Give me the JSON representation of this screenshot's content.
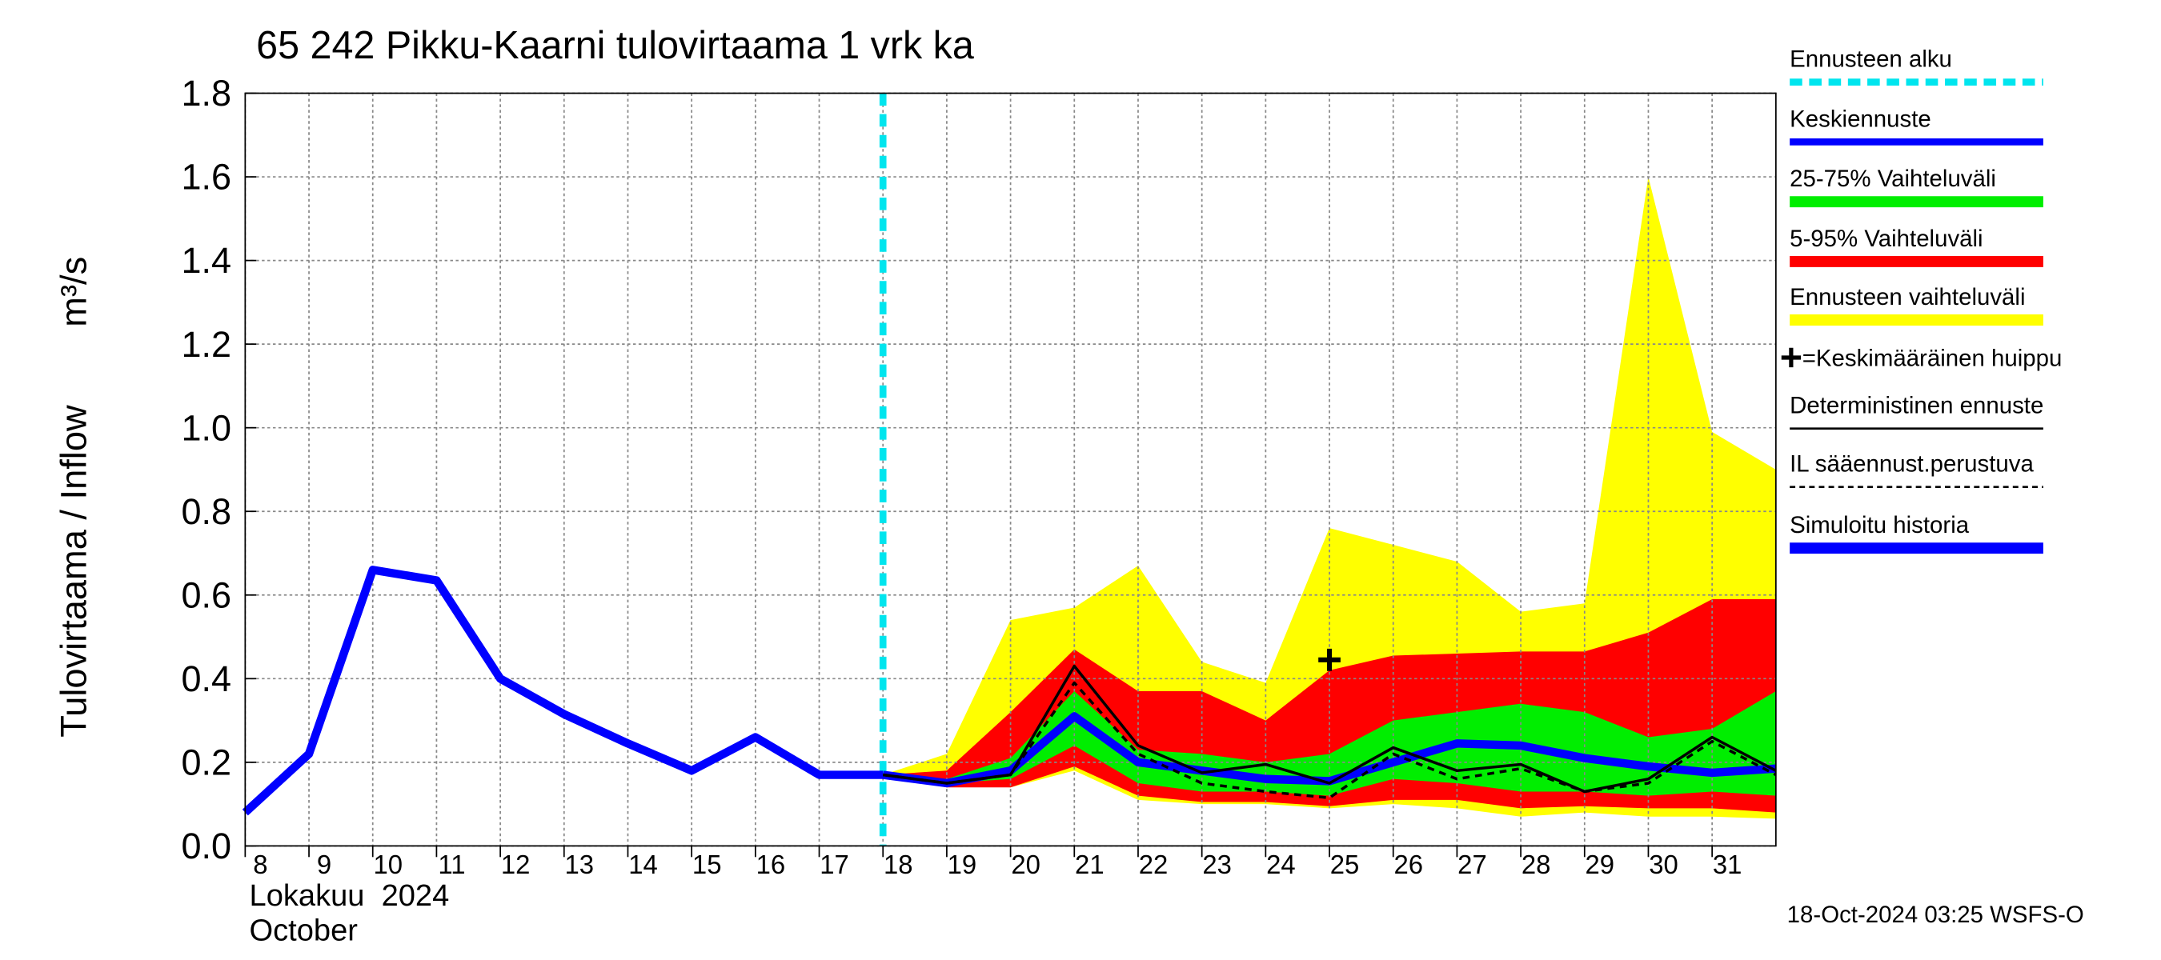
{
  "chart_data": {
    "type": "line",
    "title": "65 242 Pikku-Kaarni tulovirtaama 1 vrk ka",
    "ylabel": "Tulovirtaama / Inflow",
    "yunit": "m³/s",
    "xlabel_fi": "Lokakuu  2024",
    "xlabel_en": "October",
    "footer": "18-Oct-2024 03:25 WSFS-O",
    "xlim": [
      8,
      32
    ],
    "xticks": [
      8,
      9,
      10,
      11,
      12,
      13,
      14,
      15,
      16,
      17,
      18,
      19,
      20,
      21,
      22,
      23,
      24,
      25,
      26,
      27,
      28,
      29,
      30,
      31
    ],
    "ylim": [
      0,
      1.8
    ],
    "yticks": [
      {
        "value": 0,
        "label": "0.0"
      },
      0.2,
      0.4,
      0.6,
      0.8,
      {
        "value": 1,
        "label": "1.0"
      },
      1.2,
      1.4,
      1.6,
      1.8
    ],
    "grid": true,
    "forecast_start": {
      "name": "Ennusteen alku",
      "color": "#00e5ee",
      "x": 18
    },
    "bands": [
      {
        "name": "Ennusteen vaihteluväli",
        "color": "#ffff00",
        "x": [
          18,
          19,
          20,
          21,
          22,
          23,
          24,
          25,
          26,
          27,
          28,
          29,
          30,
          31,
          32
        ],
        "upper": [
          0.17,
          0.22,
          0.54,
          0.57,
          0.67,
          0.44,
          0.39,
          0.76,
          0.72,
          0.68,
          0.56,
          0.58,
          1.6,
          0.99,
          0.9
        ],
        "lower": [
          0.17,
          0.15,
          0.14,
          0.18,
          0.11,
          0.1,
          0.1,
          0.09,
          0.1,
          0.09,
          0.07,
          0.08,
          0.07,
          0.07,
          0.065
        ]
      },
      {
        "name": "5-95% Vaihteluväli",
        "color": "#ff0000",
        "x": [
          18,
          19,
          20,
          21,
          22,
          23,
          24,
          25,
          26,
          27,
          28,
          29,
          30,
          31,
          32
        ],
        "upper": [
          0.17,
          0.18,
          0.32,
          0.47,
          0.37,
          0.37,
          0.3,
          0.42,
          0.455,
          0.46,
          0.465,
          0.465,
          0.51,
          0.59,
          0.59
        ],
        "lower": [
          0.17,
          0.14,
          0.14,
          0.19,
          0.12,
          0.105,
          0.105,
          0.095,
          0.11,
          0.11,
          0.09,
          0.095,
          0.09,
          0.09,
          0.08
        ]
      },
      {
        "name": "25-75% Vaihteluväli",
        "color": "#00ee00",
        "x": [
          18,
          19,
          20,
          21,
          22,
          23,
          24,
          25,
          26,
          27,
          28,
          29,
          30,
          31,
          32
        ],
        "upper": [
          0.17,
          0.16,
          0.21,
          0.37,
          0.23,
          0.22,
          0.2,
          0.22,
          0.3,
          0.32,
          0.34,
          0.32,
          0.26,
          0.28,
          0.37
        ],
        "lower": [
          0.17,
          0.15,
          0.16,
          0.24,
          0.15,
          0.13,
          0.13,
          0.12,
          0.16,
          0.15,
          0.13,
          0.13,
          0.12,
          0.13,
          0.12
        ]
      }
    ],
    "series": [
      {
        "name": "Simuloitu historia",
        "color": "#0000ff",
        "width": 6,
        "dash": "none",
        "x": [
          8,
          9,
          10,
          11,
          12,
          13,
          14,
          15,
          16,
          17,
          18
        ],
        "values": [
          0.08,
          0.22,
          0.66,
          0.635,
          0.4,
          0.315,
          0.245,
          0.18,
          0.26,
          0.17,
          0.17
        ]
      },
      {
        "name": "Keskiennuste",
        "color": "#0000ff",
        "width": 6,
        "dash": "none",
        "x": [
          18,
          19,
          20,
          21,
          22,
          23,
          24,
          25,
          26,
          27,
          28,
          29,
          30,
          31,
          32
        ],
        "values": [
          0.17,
          0.15,
          0.18,
          0.31,
          0.2,
          0.18,
          0.16,
          0.155,
          0.2,
          0.245,
          0.24,
          0.21,
          0.19,
          0.175,
          0.185
        ]
      },
      {
        "name": "Deterministinen ennuste",
        "color": "#000000",
        "width": 2,
        "dash": "none",
        "x": [
          18,
          19,
          20,
          21,
          22,
          23,
          24,
          25,
          26,
          27,
          28,
          29,
          30,
          31,
          32
        ],
        "values": [
          0.17,
          0.15,
          0.17,
          0.43,
          0.24,
          0.175,
          0.195,
          0.15,
          0.235,
          0.18,
          0.195,
          0.13,
          0.16,
          0.26,
          0.18
        ]
      },
      {
        "name": "IL sääennust.perustuva",
        "color": "#000000",
        "width": 2,
        "dash": "5,4",
        "x": [
          18,
          19,
          20,
          21,
          22,
          23,
          24,
          25,
          26,
          27,
          28,
          29,
          30,
          31,
          32
        ],
        "values": [
          0.17,
          0.15,
          0.17,
          0.39,
          0.22,
          0.15,
          0.13,
          0.115,
          0.22,
          0.16,
          0.185,
          0.13,
          0.15,
          0.25,
          0.17
        ]
      }
    ],
    "peak": {
      "name": "=Keskimääräinen huippu",
      "x": 25,
      "y": 0.445
    }
  }
}
